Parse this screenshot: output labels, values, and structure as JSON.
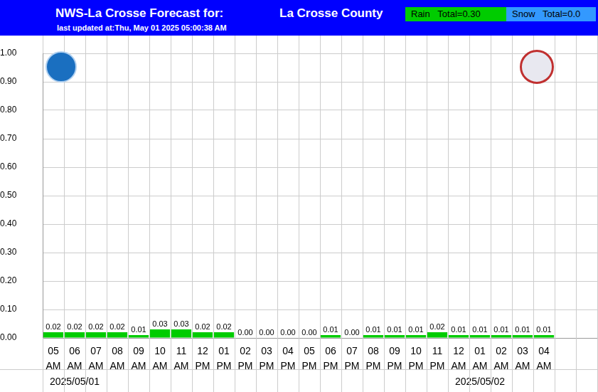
{
  "chart_data": {
    "type": "bar",
    "title": "NWS-La Crosse Forecast for:",
    "subtitle": "last updated at:Thu, May 01 2025 05:00:38 AM",
    "annotations": [
      {
        "text": "La Crosse County"
      },
      {
        "text": "Rain   Total=0.30",
        "color": "#00cc00"
      },
      {
        "text": "Snow   Total=0.0",
        "color": "#3399ff"
      }
    ],
    "categories": [
      [
        "05",
        "AM"
      ],
      [
        "06",
        "AM",
        "2025/05/01"
      ],
      [
        "07",
        "AM"
      ],
      [
        "08",
        "AM"
      ],
      [
        "09",
        "AM"
      ],
      [
        "10",
        "AM"
      ],
      [
        "11",
        "AM"
      ],
      [
        "12",
        "PM"
      ],
      [
        "01",
        "PM"
      ],
      [
        "02",
        "PM"
      ],
      [
        "03",
        "PM"
      ],
      [
        "04",
        "PM"
      ],
      [
        "05",
        "PM"
      ],
      [
        "06",
        "PM"
      ],
      [
        "07",
        "PM"
      ],
      [
        "08",
        "PM"
      ],
      [
        "09",
        "PM"
      ],
      [
        "10",
        "PM"
      ],
      [
        "11",
        "PM"
      ],
      [
        "12",
        "AM"
      ],
      [
        "01",
        "AM",
        "2025/05/02"
      ],
      [
        "02",
        "AM"
      ],
      [
        "03",
        "AM"
      ],
      [
        "04",
        "AM"
      ],
      null,
      null
    ],
    "values": [
      0.02,
      0.02,
      0.02,
      0.02,
      0.01,
      0.03,
      0.03,
      0.02,
      0.02,
      0.0,
      0.0,
      0.0,
      0.0,
      0.01,
      0.0,
      0.01,
      0.01,
      0.01,
      0.02,
      0.01,
      0.01,
      0.01,
      0.01,
      0.01,
      null,
      null
    ],
    "value_labels": [
      "0.02",
      "0.02",
      "0.02",
      "0.02",
      "0.01",
      "0.03",
      "0.03",
      "0.02",
      "0.02",
      "0.00",
      "0.00",
      "0.00",
      "0.00",
      "0.01",
      "0.00",
      "0.01",
      "0.01",
      "0.01",
      "0.02",
      "0.01",
      "0.01",
      "0.01",
      "0.01",
      "0.01",
      null,
      null
    ],
    "data_labels": true,
    "color": "#00cc00",
    "ylim": [
      0,
      1.0
    ],
    "yticks": [
      {
        "value": 0,
        "label": "0.00"
      },
      {
        "value": 0.1,
        "label": "0.10"
      },
      {
        "value": 0.2,
        "label": "0.20"
      },
      {
        "value": 0.3,
        "label": "0.30"
      },
      {
        "value": 0.4,
        "label": "0.40"
      },
      {
        "value": 0.5,
        "label": "0.50"
      },
      {
        "value": 0.6,
        "label": "0.60"
      },
      {
        "value": 0.7,
        "label": "0.70"
      },
      {
        "value": 0.8,
        "label": "0.80"
      },
      {
        "value": 0.9,
        "label": "0.90"
      },
      {
        "value": 1.0,
        "label": "1.00"
      }
    ],
    "grid": true
  }
}
